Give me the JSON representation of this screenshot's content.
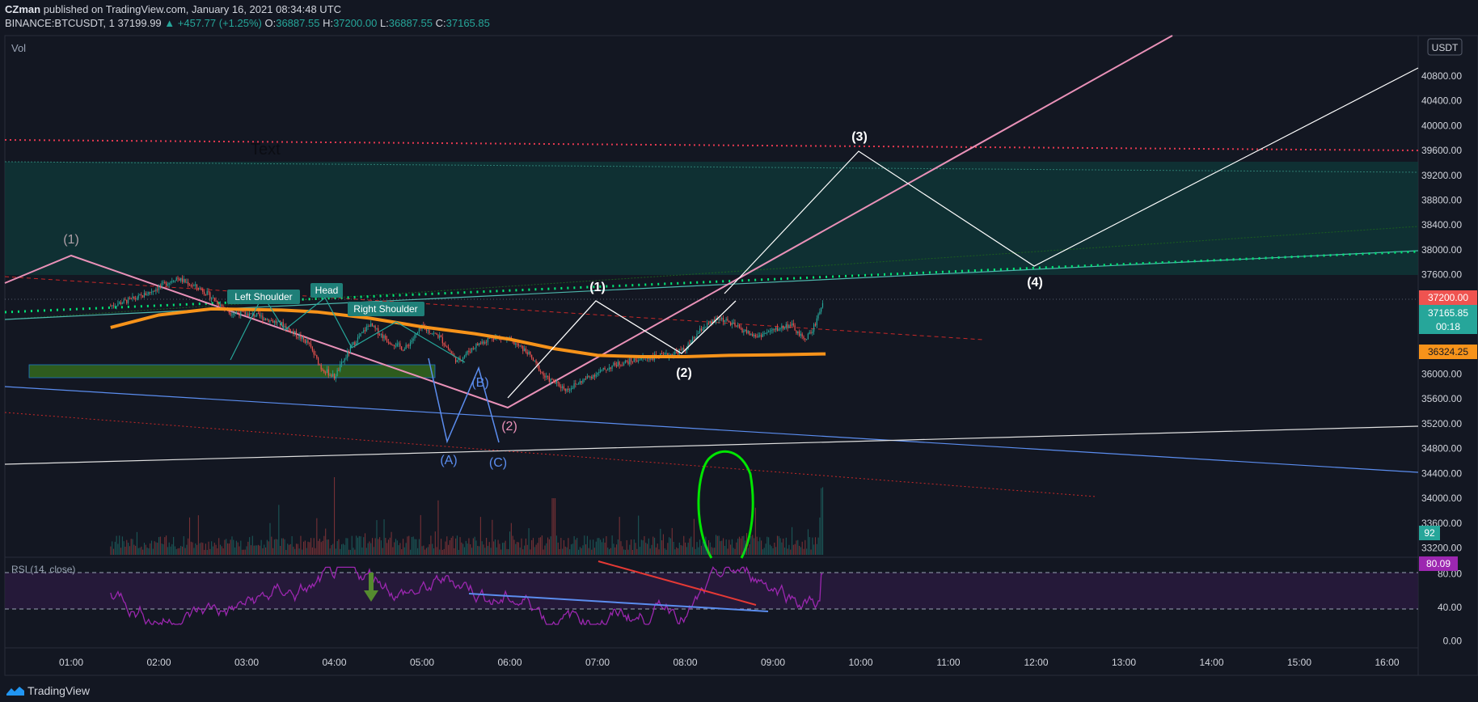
{
  "header": {
    "author": "CZman",
    "published": "published on TradingView.com, January 16, 2021 08:34:48 UTC",
    "symbol": "BINANCE:BTCUSDT, 1",
    "last": "37199.99",
    "change": "▲ +457.77 (+1.25%)",
    "o_label": "O:",
    "o_value": "36887.55",
    "h_label": "H:",
    "h_value": "37200.00",
    "l_label": "L:",
    "l_value": "36887.55",
    "c_label": "C:",
    "c_value": "37165.85"
  },
  "panes": {
    "vol_label": "Vol",
    "rsi_label": "RSI (14, close)",
    "currency": "USDT"
  },
  "price_badges": {
    "high": "37200.00",
    "close": "37165.85",
    "timer": "00:18",
    "ma": "36324.25",
    "volume": "92",
    "rsi": "80.09"
  },
  "annotations": {
    "text_label": "Text",
    "left_shoulder": "Left Shoulder",
    "head": "Head",
    "right_shoulder": "Right Shoulder",
    "wave1_pink": "(1)",
    "wave2_pink": "(2)",
    "waveA": "(A)",
    "waveB": "(B)",
    "waveC": "(C)",
    "wave1": "(1)",
    "wave2": "(2)",
    "wave3": "(3)",
    "wave4": "(4)"
  },
  "footer": {
    "brand": "TradingView"
  },
  "colors": {
    "background": "#131722",
    "up": "#26a69a",
    "down": "#ef5350",
    "ma": "#f7931a",
    "rsi": "#9c27b0",
    "green_dotted": "#00c853",
    "pink": "#e991b8",
    "blue": "#5b8def"
  },
  "chart_data": {
    "type": "candlestick",
    "symbol": "BINANCE:BTCUSDT",
    "interval": "1",
    "x_ticks": [
      "01:00",
      "02:00",
      "03:00",
      "04:00",
      "05:00",
      "06:00",
      "07:00",
      "08:00",
      "09:00",
      "10:00",
      "11:00",
      "12:00",
      "13:00",
      "14:00",
      "15:00",
      "16:00"
    ],
    "price_ticks": [
      33200,
      33600,
      34000,
      34400,
      34800,
      35200,
      35600,
      36000,
      36400,
      36800,
      37200,
      37600,
      38000,
      38400,
      38800,
      39200,
      39600,
      40000,
      40400,
      40800
    ],
    "price_ylim": [
      33050,
      41450
    ],
    "rsi_ticks": [
      0,
      40,
      80
    ],
    "rsi_ylim": [
      -8,
      100
    ],
    "rsi_bands": [
      30,
      70
    ],
    "ohlc_last": {
      "open": 36887.55,
      "high": 37200.0,
      "low": 36887.55,
      "close": 37165.85
    },
    "ma_last": 36324.25,
    "volume_last": 92,
    "rsi_last": 80.09,
    "ma_path": [
      [
        0.45,
        36750
      ],
      [
        1.0,
        36950
      ],
      [
        1.6,
        37050
      ],
      [
        2.4,
        37030
      ],
      [
        2.8,
        37000
      ],
      [
        3.4,
        36900
      ],
      [
        4.0,
        36760
      ],
      [
        4.6,
        36650
      ],
      [
        5.0,
        36560
      ],
      [
        5.5,
        36410
      ],
      [
        6.0,
        36300
      ],
      [
        6.5,
        36280
      ],
      [
        7.0,
        36280
      ],
      [
        7.5,
        36300
      ],
      [
        8.0,
        36310
      ],
      [
        8.6,
        36324
      ]
    ],
    "price_path": [
      [
        0.45,
        37100
      ],
      [
        0.8,
        37250
      ],
      [
        1.2,
        37550
      ],
      [
        1.5,
        37350
      ],
      [
        1.8,
        37000
      ],
      [
        2.1,
        36950
      ],
      [
        2.4,
        36800
      ],
      [
        2.7,
        36500
      ],
      [
        2.85,
        36100
      ],
      [
        3.0,
        35950
      ],
      [
        3.2,
        36450
      ],
      [
        3.4,
        36800
      ],
      [
        3.6,
        36550
      ],
      [
        3.8,
        36400
      ],
      [
        4.0,
        36750
      ],
      [
        4.2,
        36600
      ],
      [
        4.4,
        36200
      ],
      [
        4.6,
        36450
      ],
      [
        4.8,
        36600
      ],
      [
        5.0,
        36550
      ],
      [
        5.2,
        36350
      ],
      [
        5.4,
        35950
      ],
      [
        5.65,
        35750
      ],
      [
        5.9,
        35950
      ],
      [
        6.2,
        36150
      ],
      [
        6.5,
        36250
      ],
      [
        6.8,
        36300
      ],
      [
        7.0,
        36400
      ],
      [
        7.2,
        36750
      ],
      [
        7.4,
        36900
      ],
      [
        7.6,
        36750
      ],
      [
        7.8,
        36600
      ],
      [
        8.0,
        36700
      ],
      [
        8.2,
        36800
      ],
      [
        8.35,
        36550
      ],
      [
        8.45,
        36700
      ],
      [
        8.58,
        37200
      ]
    ],
    "waves": [
      {
        "label": "(1)",
        "x": 0.0,
        "price": 37950
      },
      {
        "label": "(2)",
        "x": 5.0,
        "price": 35300
      },
      {
        "label": "(A)",
        "x": 4.3,
        "price": 34800
      },
      {
        "label": "(B)",
        "x": 4.75,
        "price": 35900
      },
      {
        "label": "(C)",
        "x": 5.2,
        "price": 34750
      },
      {
        "label": "(1)",
        "x": 7.0,
        "price": 37300
      },
      {
        "label": "(2)",
        "x": 8.0,
        "price": 36100
      },
      {
        "label": "(3)",
        "x": 10.0,
        "price": 39700
      },
      {
        "label": "(4)",
        "x": 12.0,
        "price": 37600
      }
    ]
  }
}
